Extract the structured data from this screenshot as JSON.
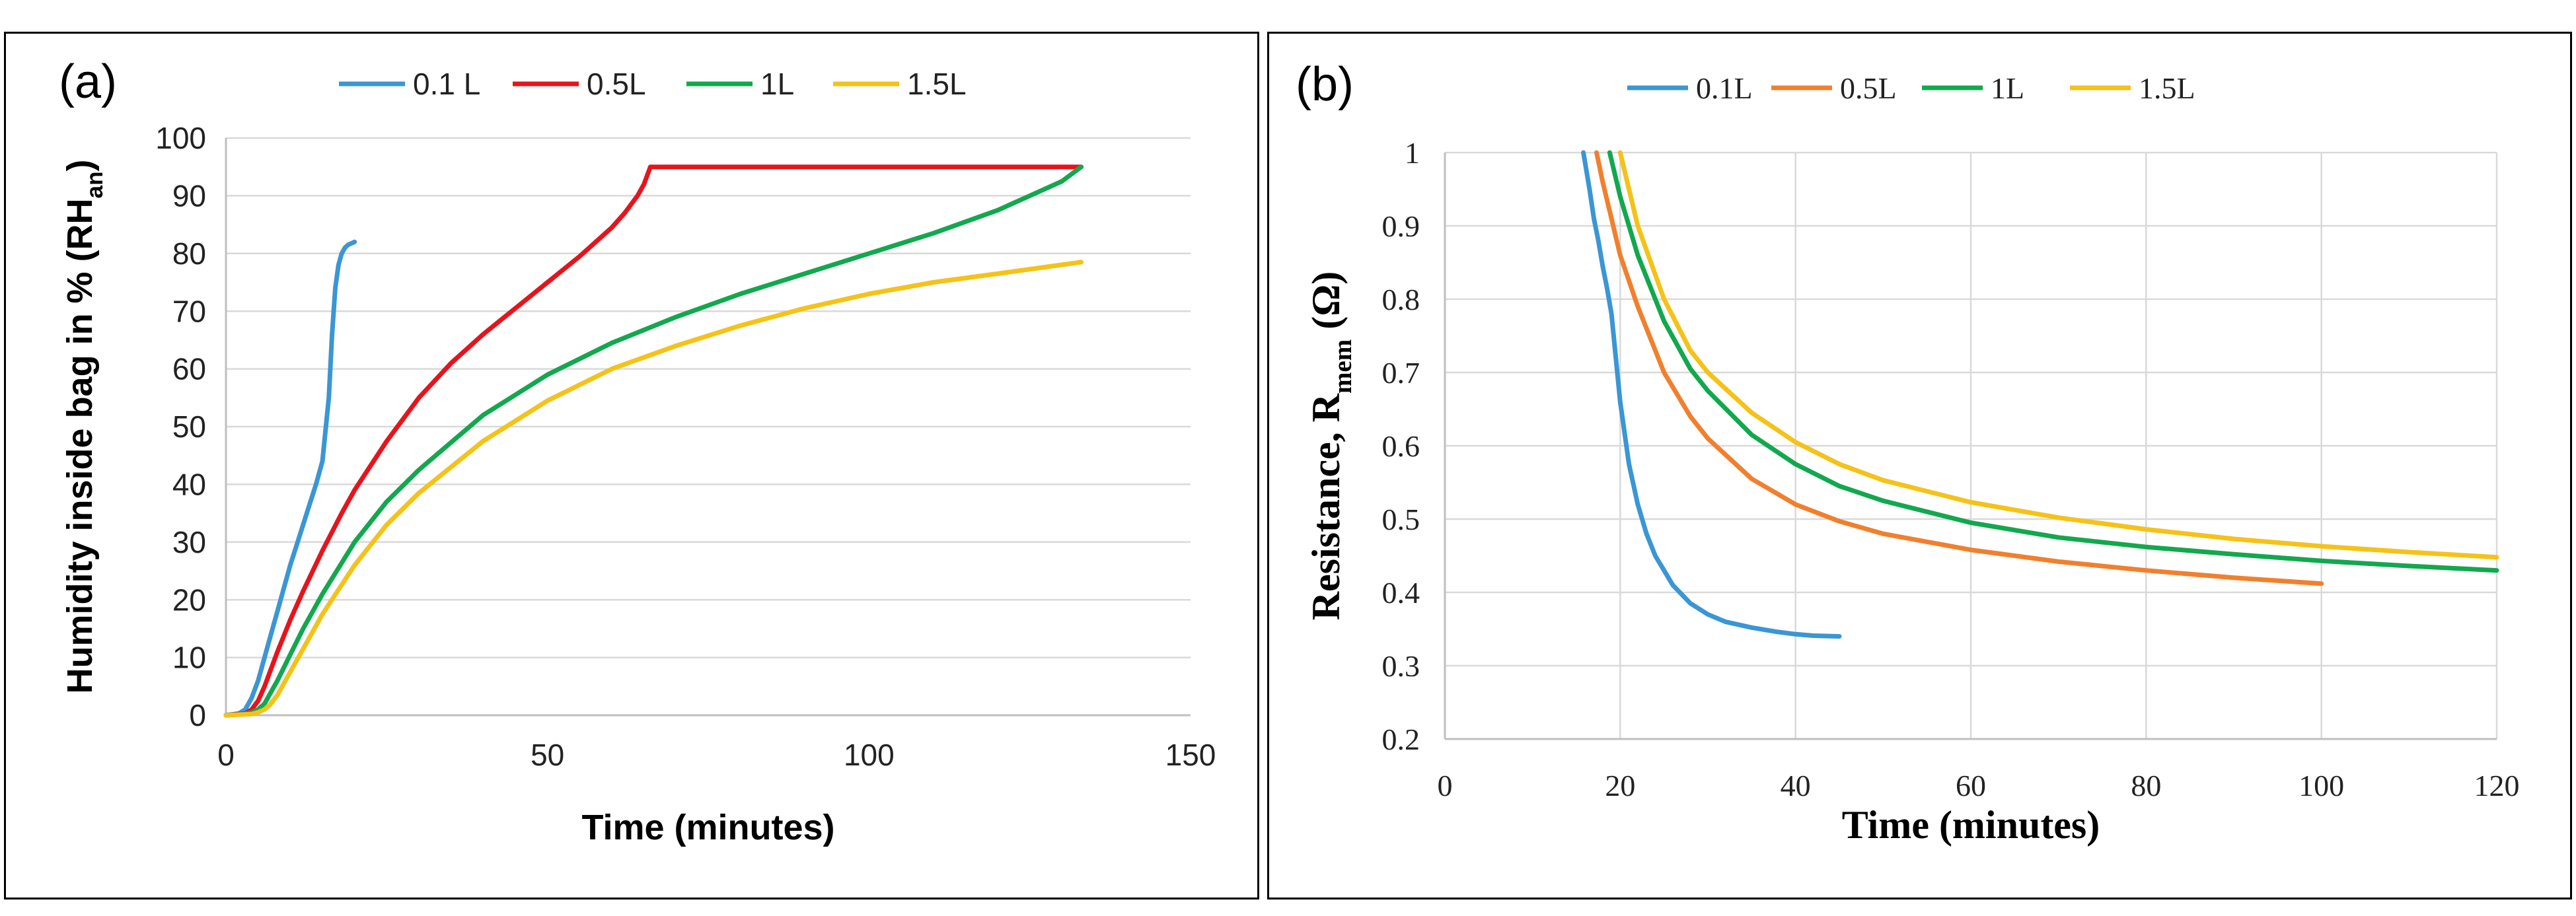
{
  "chart_data": [
    {
      "panel_label": "(a)",
      "type": "line",
      "title": "",
      "xlabel": "Time (minutes)",
      "ylabel": "Humidity inside bag in % (RH",
      "ylabel_sub": "an",
      "ylabel_close": ")",
      "xlim": [
        0,
        150
      ],
      "ylim": [
        0,
        100
      ],
      "xticks": [
        0,
        50,
        100,
        150
      ],
      "yticks": [
        0,
        10,
        20,
        30,
        40,
        50,
        60,
        70,
        80,
        90,
        100
      ],
      "grid": "horizontal",
      "legend_position": "top",
      "series": [
        {
          "name": "0.1 L",
          "color": "#3a96d4",
          "x": [
            0,
            2,
            3,
            4,
            5,
            6,
            7,
            8,
            9,
            10,
            11,
            12,
            13,
            14,
            15,
            16,
            16.5,
            17,
            17.5,
            18,
            18.5,
            19,
            20
          ],
          "y": [
            0,
            0.3,
            1,
            3,
            6,
            10,
            14,
            18,
            22,
            26,
            29.5,
            33,
            36.5,
            40,
            44,
            55,
            66,
            74,
            78,
            80,
            81,
            81.5,
            82
          ]
        },
        {
          "name": "0.5L",
          "color": "#e8131b",
          "x": [
            0,
            3,
            4,
            5,
            6,
            8,
            10,
            12,
            15,
            18,
            20,
            25,
            30,
            35,
            40,
            45,
            50,
            55,
            60,
            62,
            64,
            65,
            66,
            70,
            80,
            100,
            120,
            133
          ],
          "y": [
            0,
            0.3,
            1,
            2.5,
            5,
            11,
            16.5,
            21.5,
            28.5,
            35,
            39,
            47.5,
            55,
            61,
            66,
            70.5,
            75,
            79.5,
            84.5,
            87,
            90,
            92,
            95,
            95,
            95,
            95,
            95,
            95
          ]
        },
        {
          "name": "1L",
          "color": "#12a84e",
          "x": [
            0,
            3,
            4,
            5,
            6,
            7,
            8,
            10,
            12,
            15,
            20,
            25,
            30,
            40,
            50,
            60,
            70,
            80,
            90,
            100,
            110,
            120,
            125,
            130,
            133
          ],
          "y": [
            0,
            0.2,
            0.5,
            1,
            2,
            4,
            6,
            10.5,
            15,
            21,
            30,
            37,
            42.5,
            52,
            59,
            64.5,
            69,
            73,
            76.5,
            80,
            83.5,
            87.5,
            90,
            92.5,
            95
          ]
        },
        {
          "name": "1.5L",
          "color": "#f5c218",
          "x": [
            0,
            4,
            5,
            6,
            7,
            8,
            10,
            12,
            15,
            20,
            25,
            30,
            40,
            50,
            60,
            70,
            80,
            90,
            100,
            110,
            120,
            133
          ],
          "y": [
            0,
            0.2,
            0.5,
            1,
            2,
            3.5,
            7.5,
            11.5,
            17.5,
            26,
            33,
            38.5,
            47.5,
            54.5,
            60,
            64,
            67.5,
            70.5,
            73,
            75,
            76.5,
            78.5
          ]
        }
      ]
    },
    {
      "panel_label": "(b)",
      "type": "line",
      "title": "",
      "xlabel": "Time (minutes)",
      "ylabel": "Resistance, R",
      "ylabel_sub": "mem",
      "ylabel_close": " (Ω)",
      "xlim": [
        0,
        120
      ],
      "ylim": [
        0.2,
        1
      ],
      "xticks": [
        0,
        20,
        40,
        60,
        80,
        100,
        120
      ],
      "yticks": [
        0.2,
        0.3,
        0.4,
        0.5,
        0.6,
        0.7,
        0.8,
        0.9,
        1
      ],
      "ytick_labels": [
        "0.2",
        "0.3",
        "0.4",
        "0.5",
        "0.6",
        "0.7",
        "0.8",
        "0.9",
        "1"
      ],
      "grid": "both",
      "legend_position": "top",
      "series": [
        {
          "name": "0.1L",
          "color": "#3a96d4",
          "x": [
            15.8,
            16.5,
            17,
            17.5,
            18,
            18.5,
            19,
            19.5,
            20,
            21,
            22,
            23,
            24,
            25,
            26,
            28,
            30,
            32,
            35,
            38,
            40,
            42,
            45
          ],
          "y": [
            1,
            0.95,
            0.91,
            0.88,
            0.845,
            0.815,
            0.78,
            0.72,
            0.66,
            0.575,
            0.52,
            0.48,
            0.45,
            0.43,
            0.41,
            0.385,
            0.37,
            0.36,
            0.352,
            0.346,
            0.343,
            0.341,
            0.34
          ]
        },
        {
          "name": "0.5L",
          "color": "#f0802e",
          "x": [
            17.3,
            18,
            19,
            20,
            22,
            25,
            28,
            30,
            35,
            40,
            45,
            50,
            60,
            70,
            80,
            90,
            100
          ],
          "y": [
            1,
            0.96,
            0.91,
            0.86,
            0.79,
            0.7,
            0.64,
            0.61,
            0.555,
            0.52,
            0.497,
            0.48,
            0.458,
            0.442,
            0.43,
            0.42,
            0.412
          ]
        },
        {
          "name": "1L",
          "color": "#12a84e",
          "x": [
            18.8,
            20,
            22,
            25,
            28,
            30,
            35,
            40,
            45,
            50,
            60,
            70,
            80,
            90,
            100,
            110,
            120
          ],
          "y": [
            1,
            0.94,
            0.86,
            0.77,
            0.705,
            0.675,
            0.615,
            0.575,
            0.545,
            0.525,
            0.495,
            0.475,
            0.462,
            0.452,
            0.443,
            0.436,
            0.43
          ]
        },
        {
          "name": "1.5L",
          "color": "#f5c218",
          "x": [
            20,
            21,
            22,
            25,
            28,
            30,
            35,
            40,
            45,
            50,
            60,
            70,
            80,
            90,
            100,
            110,
            120
          ],
          "y": [
            1,
            0.95,
            0.9,
            0.8,
            0.73,
            0.7,
            0.645,
            0.605,
            0.575,
            0.553,
            0.523,
            0.502,
            0.486,
            0.473,
            0.463,
            0.455,
            0.448
          ]
        }
      ]
    }
  ]
}
